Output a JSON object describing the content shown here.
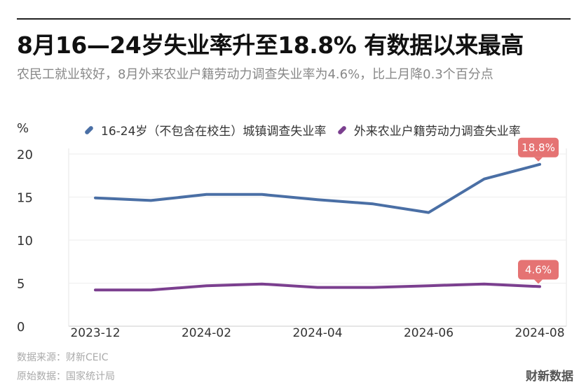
{
  "title": "8月16—24岁失业率升至18.8% 有数据以来最高",
  "subtitle": "农民工就业较好，8月外来农业户籍劳动力调查失业率为4.6%，比上月降0.3个百分点",
  "unit": "%",
  "source_line1": "数据来源：财新CEIC",
  "source_line2": "原始数据：国家统计局",
  "brand": "财新数据",
  "colors": {
    "series1": "#4a6fa5",
    "series2": "#7b3f8f",
    "label_bg": "#e57373"
  },
  "chart_data": {
    "type": "line",
    "x": [
      "2023-12",
      "2024-01",
      "2024-02",
      "2024-03",
      "2024-04",
      "2024-05",
      "2024-06",
      "2024-07",
      "2024-08"
    ],
    "xticks": [
      "2023-12",
      "2024-02",
      "2024-04",
      "2024-06",
      "2024-08"
    ],
    "yticks": [
      0,
      5,
      10,
      15,
      20
    ],
    "ylim": [
      0,
      20
    ],
    "grid": true,
    "legend": "top",
    "series": [
      {
        "name": "16-24岁（不包含在校生）城镇调查失业率",
        "values": [
          14.9,
          14.6,
          15.3,
          15.3,
          14.7,
          14.2,
          13.2,
          17.1,
          18.8
        ],
        "end_label": "18.8%"
      },
      {
        "name": "外来农业户籍劳动力调查失业率",
        "values": [
          4.2,
          4.2,
          4.7,
          4.9,
          4.5,
          4.5,
          4.7,
          4.9,
          4.6
        ],
        "end_label": "4.6%"
      }
    ]
  }
}
